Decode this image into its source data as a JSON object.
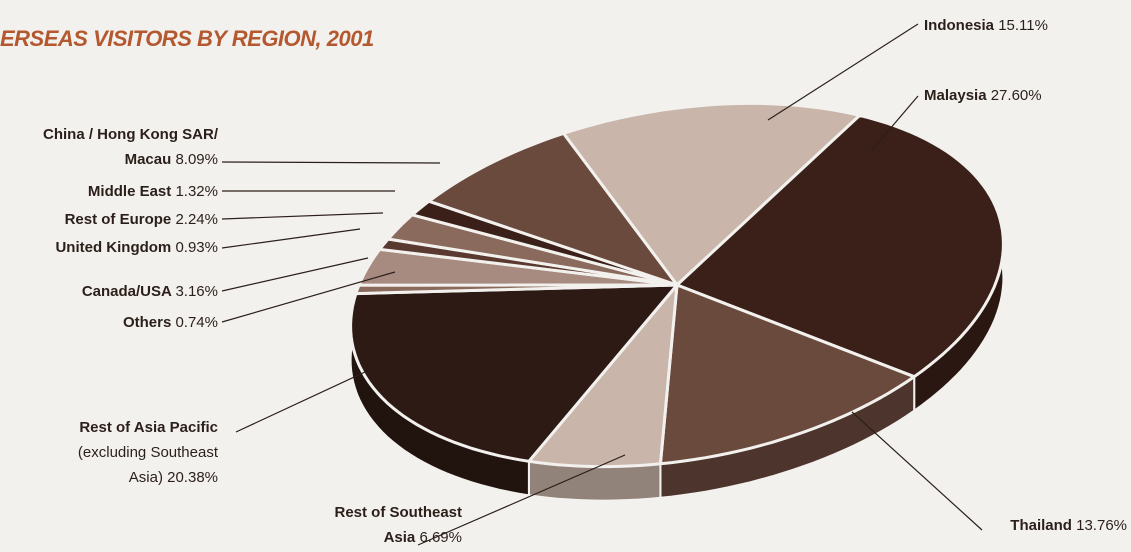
{
  "title": "ERSEAS VISITORS BY REGION, 2001",
  "chart_data": {
    "type": "pie",
    "title": "ERSEAS VISITORS BY REGION, 2001",
    "series": [
      {
        "name": "Indonesia",
        "value": 15.11,
        "value_label": "15.11%",
        "color": "#c9b5aa"
      },
      {
        "name": "Malaysia",
        "value": 27.6,
        "value_label": "27.60%",
        "color": "#3a2019"
      },
      {
        "name": "Thailand",
        "value": 13.76,
        "value_label": "13.76%",
        "color": "#6b4a3e"
      },
      {
        "name": "Rest of Southeast Asia",
        "value": 6.69,
        "value_label": "6.69%",
        "color": "#c9b5aa"
      },
      {
        "name": "Rest of Asia Pacific (excluding Southeast Asia)",
        "value": 20.38,
        "value_label": "20.38%",
        "color": "#2e1a14"
      },
      {
        "name": "Others",
        "value": 0.74,
        "value_label": "0.74%",
        "color": "#8a6a5c"
      },
      {
        "name": "Canada/USA",
        "value": 3.16,
        "value_label": "3.16%",
        "color": "#a78b80"
      },
      {
        "name": "United Kingdom",
        "value": 0.93,
        "value_label": "0.93%",
        "color": "#5a3a30"
      },
      {
        "name": "Rest of Europe",
        "value": 2.24,
        "value_label": "2.24%",
        "color": "#8a6a5c"
      },
      {
        "name": "Middle East",
        "value": 1.32,
        "value_label": "1.32%",
        "color": "#3a2019"
      },
      {
        "name": "China / Hong Kong SAR/ Macau",
        "value": 8.09,
        "value_label": "8.09%",
        "color": "#6b4a3e"
      }
    ],
    "labels": [
      {
        "lines": [
          [
            "Indonesia",
            "15.11%"
          ]
        ]
      },
      {
        "lines": [
          [
            "Malaysia",
            "27.60%"
          ]
        ]
      },
      {
        "lines": [
          [
            "Thailand",
            "13.76%"
          ]
        ]
      },
      {
        "lines": [
          [
            "Rest of Southeast",
            ""
          ],
          [
            "Asia",
            "6.69%"
          ]
        ]
      },
      {
        "lines": [
          [
            "Rest of Asia Pacific",
            ""
          ],
          [
            "",
            "(excluding Southeast"
          ],
          [
            "",
            "Asia) 20.38%"
          ]
        ]
      },
      {
        "lines": [
          [
            "Others",
            "0.74%"
          ]
        ]
      },
      {
        "lines": [
          [
            "Canada/USA",
            "3.16%"
          ]
        ]
      },
      {
        "lines": [
          [
            "United Kingdom",
            "0.93%"
          ]
        ]
      },
      {
        "lines": [
          [
            "Rest of Europe",
            "2.24%"
          ]
        ]
      },
      {
        "lines": [
          [
            "Middle East",
            "1.32%"
          ]
        ]
      },
      {
        "lines": [
          [
            "China / Hong Kong SAR/",
            ""
          ],
          [
            "Macau",
            "8.09%"
          ]
        ]
      }
    ]
  }
}
